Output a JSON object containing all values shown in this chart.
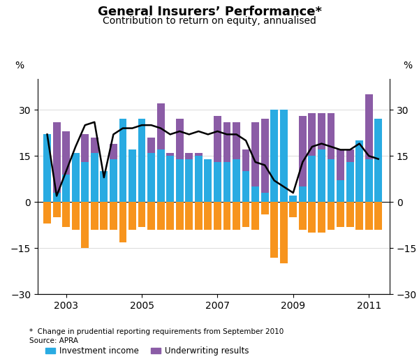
{
  "title": "General Insurers’ Performance*",
  "subtitle": "Contribution to return on equity, annualised",
  "ylabel_left": "%",
  "ylabel_right": "%",
  "footnote": "*  Change in prudential reporting requirements from September 2010",
  "source": "Source: APRA",
  "ylim": [
    -30,
    40
  ],
  "yticks": [
    -30,
    -15,
    0,
    15,
    30
  ],
  "colors": {
    "investment_income": "#29ABE2",
    "tax_and_other": "#F7941D",
    "underwriting_results": "#8B5CA6",
    "profit_after_tax": "#000000"
  },
  "x_numeric": [
    2002.5,
    2002.75,
    2003.0,
    2003.25,
    2003.5,
    2003.75,
    2004.0,
    2004.25,
    2004.5,
    2004.75,
    2005.0,
    2005.25,
    2005.5,
    2005.75,
    2006.0,
    2006.25,
    2006.5,
    2006.75,
    2007.0,
    2007.25,
    2007.5,
    2007.75,
    2008.0,
    2008.25,
    2008.5,
    2008.75,
    2009.0,
    2009.25,
    2009.5,
    2009.75,
    2010.0,
    2010.25,
    2010.5,
    2010.75,
    2011.0,
    2011.25
  ],
  "investment_income": [
    22,
    3,
    9,
    16,
    13,
    16,
    10,
    14,
    27,
    17,
    27,
    16,
    17,
    15,
    14,
    14,
    15,
    14,
    13,
    13,
    14,
    10,
    5,
    3,
    30,
    30,
    2,
    5,
    15,
    17,
    14,
    7,
    13,
    20,
    14,
    27
  ],
  "tax_and_other": [
    -7,
    -5,
    -8,
    -9,
    -15,
    -9,
    -9,
    -9,
    -13,
    -9,
    -8,
    -9,
    -9,
    -9,
    -9,
    -9,
    -9,
    -9,
    -9,
    -9,
    -9,
    -8,
    -9,
    -4,
    -18,
    -20,
    -5,
    -9,
    -10,
    -10,
    -9,
    -8,
    -8,
    -9,
    -9,
    -9
  ],
  "underwriting_results": [
    12,
    26,
    23,
    11,
    22,
    21,
    7,
    19,
    8,
    13,
    8,
    21,
    32,
    16,
    27,
    16,
    16,
    13,
    28,
    26,
    26,
    17,
    26,
    27,
    0,
    0,
    -5,
    28,
    29,
    29,
    29,
    17,
    17,
    8,
    35,
    5
  ],
  "profit_after_tax": [
    22,
    2,
    10,
    18,
    25,
    26,
    8,
    22,
    24,
    24,
    25,
    25,
    24,
    22,
    23,
    22,
    23,
    22,
    23,
    22,
    22,
    20,
    13,
    12,
    7,
    5,
    3,
    13,
    18,
    19,
    18,
    17,
    17,
    19,
    15,
    14
  ],
  "xtick_positions": [
    2003,
    2005,
    2007,
    2009,
    2011
  ],
  "xtick_labels": [
    "2003",
    "2005",
    "2007",
    "2009",
    "2011"
  ]
}
